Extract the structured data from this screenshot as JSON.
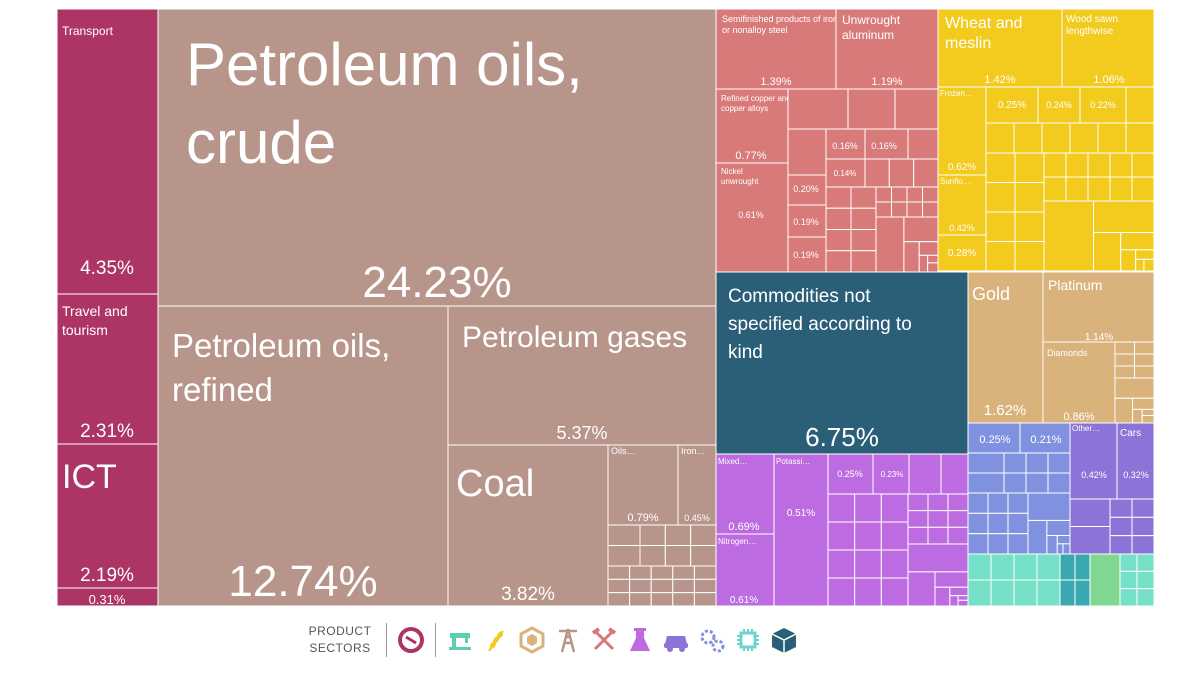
{
  "chart_data": {
    "type": "treemap",
    "title": "",
    "legend_title": "PRODUCT SECTORS",
    "legend_icons": [
      "services-icon",
      "textiles-icon",
      "agriculture-icon",
      "stone-icon",
      "minerals-icon",
      "metals-icon",
      "chemicals-icon",
      "vehicles-icon",
      "machinery-icon",
      "electronics-icon",
      "other-icon"
    ],
    "colors": {
      "services": "#ad3565",
      "minerals": "#b7958a",
      "metals": "#d97a7a",
      "agriculture": "#f2cb1e",
      "other": "#2b5f78",
      "stone": "#d9b27c",
      "machinery": "#7f91df",
      "chemicals": "#bc6ce0",
      "vehicles": "#8c73d8",
      "textiles": "#75dfc7",
      "electronics": "#80d791",
      "instruments": "#3aa8b0"
    },
    "tiles": [
      {
        "sector": "services",
        "label": "Transport",
        "value": "4.35%"
      },
      {
        "sector": "services",
        "label": "Travel and tourism",
        "value": "2.31%"
      },
      {
        "sector": "services",
        "label": "ICT",
        "value": "2.19%"
      },
      {
        "sector": "services",
        "label": "",
        "value": "0.31%"
      },
      {
        "sector": "minerals",
        "label": "Petroleum oils, crude",
        "value": "24.23%"
      },
      {
        "sector": "minerals",
        "label": "Petroleum oils, refined",
        "value": "12.74%"
      },
      {
        "sector": "minerals",
        "label": "Petroleum gases",
        "value": "5.37%"
      },
      {
        "sector": "minerals",
        "label": "Coal",
        "value": "3.82%"
      },
      {
        "sector": "minerals",
        "label": "Oils…",
        "value": "0.79%"
      },
      {
        "sector": "minerals",
        "label": "Iron…",
        "value": "0.45%"
      },
      {
        "sector": "metals",
        "label": "Semifinished products of iron or nonalloy steel",
        "value": "1.39%"
      },
      {
        "sector": "metals",
        "label": "Unwrought aluminum",
        "value": "1.19%"
      },
      {
        "sector": "metals",
        "label": "Refined copper and copper alloys",
        "value": "0.77%"
      },
      {
        "sector": "metals",
        "label": "Nickel unwrought",
        "value": "0.61%"
      },
      {
        "sector": "metals",
        "label": "",
        "value": "0.16%"
      },
      {
        "sector": "metals",
        "label": "",
        "value": "0.16%"
      },
      {
        "sector": "metals",
        "label": "",
        "value": "0.14%"
      },
      {
        "sector": "metals",
        "label": "",
        "value": "0.20%"
      },
      {
        "sector": "metals",
        "label": "",
        "value": "0.19%"
      },
      {
        "sector": "metals",
        "label": "",
        "value": "0.19%"
      },
      {
        "sector": "agriculture",
        "label": "Wheat and meslin",
        "value": "1.42%"
      },
      {
        "sector": "agriculture",
        "label": "Wood sawn lengthwise",
        "value": "1.06%"
      },
      {
        "sector": "agriculture",
        "label": "Frozen…",
        "value": "0.62%"
      },
      {
        "sector": "agriculture",
        "label": "Sunflo…",
        "value": "0.42%"
      },
      {
        "sector": "agriculture",
        "label": "",
        "value": "0.28%"
      },
      {
        "sector": "agriculture",
        "label": "",
        "value": "0.25%"
      },
      {
        "sector": "agriculture",
        "label": "",
        "value": "0.24%"
      },
      {
        "sector": "agriculture",
        "label": "",
        "value": "0.22%"
      },
      {
        "sector": "other",
        "label": "Commodities not specified according to kind",
        "value": "6.75%"
      },
      {
        "sector": "stone",
        "label": "Gold",
        "value": "1.62%"
      },
      {
        "sector": "stone",
        "label": "Platinum",
        "value": "1.14%"
      },
      {
        "sector": "stone",
        "label": "Diamonds",
        "value": "0.86%"
      },
      {
        "sector": "machinery",
        "label": "",
        "value": "0.25%"
      },
      {
        "sector": "machinery",
        "label": "",
        "value": "0.21%"
      },
      {
        "sector": "vehicles",
        "label": "Other…",
        "value": "0.42%"
      },
      {
        "sector": "vehicles",
        "label": "Cars",
        "value": "0.32%"
      },
      {
        "sector": "chemicals",
        "label": "Mixed…",
        "value": "0.69%"
      },
      {
        "sector": "chemicals",
        "label": "Nitrogen…",
        "value": "0.61%"
      },
      {
        "sector": "chemicals",
        "label": "Potassi…",
        "value": "0.51%"
      },
      {
        "sector": "chemicals",
        "label": "",
        "value": "0.25%"
      },
      {
        "sector": "chemicals",
        "label": "",
        "value": "0.23%"
      }
    ]
  }
}
